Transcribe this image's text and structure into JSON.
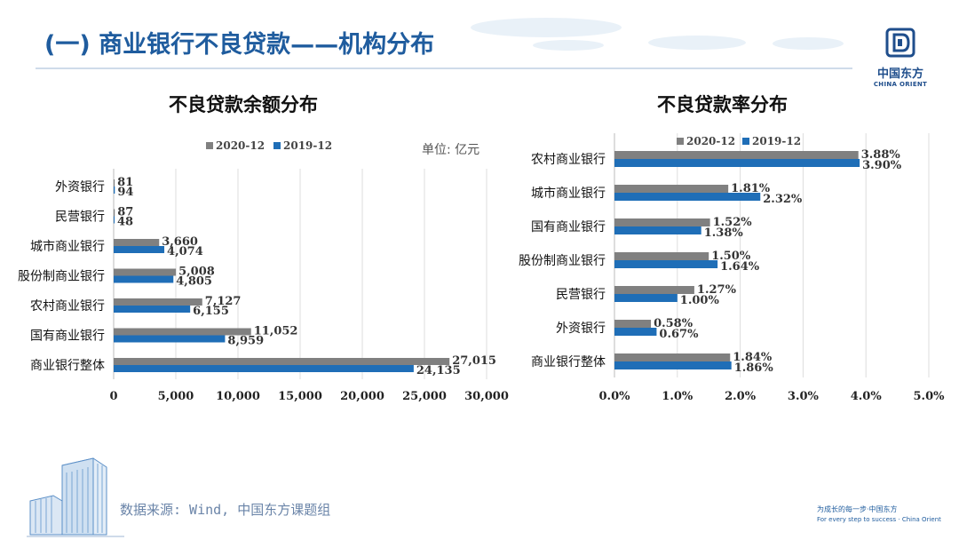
{
  "header": {
    "title": "(一) 商业银行不良贷款——机构分布"
  },
  "logo": {
    "name_cn": "中国东方",
    "name_en": "CHINA ORIENT"
  },
  "footer": {
    "source": "数据来源: Wind, 中国东方课题组",
    "slogan_cn": "为成长的每一步·中国东方",
    "slogan_en": "For every step to success · China Orient"
  },
  "colors": {
    "series2020": "#808080",
    "series2019": "#1f6eb7",
    "title_blue": "#1f5c9e"
  },
  "chart_data": [
    {
      "type": "bar",
      "orientation": "horizontal",
      "title": "不良贷款余额分布",
      "unit": "单位: 亿元",
      "categories": [
        "外资银行",
        "民营银行",
        "城市商业银行",
        "股份制商业银行",
        "农村商业银行",
        "国有商业银行",
        "商业银行整体"
      ],
      "series": [
        {
          "name": "2020-12",
          "values": [
            81,
            87,
            3660,
            5008,
            7127,
            11052,
            27015
          ],
          "labels": [
            "81",
            "87",
            "3,660",
            "5,008",
            "7,127",
            "11,052",
            "27,015"
          ]
        },
        {
          "name": "2019-12",
          "values": [
            94,
            48,
            4074,
            4805,
            6155,
            8959,
            24135
          ],
          "labels": [
            "94",
            "48",
            "4,074",
            "4,805",
            "6,155",
            "8,959",
            "24,135"
          ]
        }
      ],
      "xlim": [
        0,
        30000
      ],
      "xticks": [
        0,
        5000,
        10000,
        15000,
        20000,
        25000,
        30000
      ],
      "xtick_labels": [
        "0",
        "5,000",
        "10,000",
        "15,000",
        "20,000",
        "25,000",
        "30,000"
      ],
      "grid": true,
      "legend": "top"
    },
    {
      "type": "bar",
      "orientation": "horizontal",
      "title": "不良贷款率分布",
      "categories": [
        "农村商业银行",
        "城市商业银行",
        "国有商业银行",
        "股份制商业银行",
        "民营银行",
        "外资银行",
        "商业银行整体"
      ],
      "series": [
        {
          "name": "2020-12",
          "values": [
            3.88,
            1.81,
            1.52,
            1.5,
            1.27,
            0.58,
            1.84
          ],
          "labels": [
            "3.88%",
            "1.81%",
            "1.52%",
            "1.50%",
            "1.27%",
            "0.58%",
            "1.84%"
          ]
        },
        {
          "name": "2019-12",
          "values": [
            3.9,
            2.32,
            1.38,
            1.64,
            1.0,
            0.67,
            1.86
          ],
          "labels": [
            "3.90%",
            "2.32%",
            "1.38%",
            "1.64%",
            "1.00%",
            "0.67%",
            "1.86%"
          ]
        }
      ],
      "xlim": [
        0,
        5
      ],
      "xticks": [
        0,
        1,
        2,
        3,
        4,
        5
      ],
      "xtick_labels": [
        "0.0%",
        "1.0%",
        "2.0%",
        "3.0%",
        "4.0%",
        "5.0%"
      ],
      "grid": true,
      "legend": "top"
    }
  ]
}
